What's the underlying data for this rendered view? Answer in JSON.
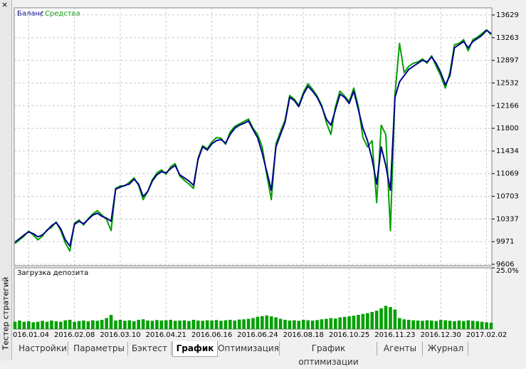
{
  "window": {
    "close": "×",
    "side_title": "Тестер стратегий"
  },
  "tabs": [
    {
      "label": "Настройки"
    },
    {
      "label": "Параметры"
    },
    {
      "label": "Бэктест"
    },
    {
      "label": "График",
      "active": true
    },
    {
      "label": "Оптимизация"
    },
    {
      "label": "График оптимизации"
    },
    {
      "label": "Агенты"
    },
    {
      "label": "Журнал"
    }
  ],
  "chart_data": [
    {
      "type": "line",
      "grid": true,
      "categories": [
        null,
        null,
        null,
        "2016.01.04",
        null,
        null,
        null,
        null,
        null,
        null,
        null,
        null,
        null,
        "2016.02.08",
        null,
        null,
        null,
        null,
        null,
        null,
        null,
        null,
        null,
        "2016.03.10",
        null,
        null,
        null,
        null,
        null,
        null,
        null,
        null,
        null,
        "2016.04.21",
        null,
        null,
        null,
        null,
        null,
        null,
        null,
        null,
        null,
        "2016.06.16",
        null,
        null,
        null,
        null,
        null,
        null,
        null,
        null,
        null,
        "2016.06.24",
        null,
        null,
        null,
        null,
        null,
        null,
        null,
        null,
        null,
        "2016.08.18",
        null,
        null,
        null,
        null,
        null,
        null,
        null,
        null,
        null,
        "2016.10.25",
        null,
        null,
        null,
        null,
        null,
        null,
        null,
        null,
        null,
        "2016.11.23",
        null,
        null,
        null,
        null,
        null,
        null,
        null,
        null,
        null,
        "2016.12.30",
        null,
        null,
        null,
        null,
        null,
        null,
        null,
        null,
        null,
        "2017.02.02",
        null
      ],
      "ylim": [
        9583,
        13744
      ],
      "yticks": [
        9606,
        9971,
        10337,
        10703,
        11069,
        11434,
        11800,
        12166,
        12532,
        12897,
        13263,
        13629
      ],
      "series": [
        {
          "name": "Средства",
          "color": "#00a000",
          "values": [
            9940,
            10000,
            10060,
            10140,
            10080,
            10000,
            10060,
            10160,
            10200,
            10290,
            10150,
            9950,
            9820,
            10270,
            10320,
            10240,
            10340,
            10420,
            10470,
            10400,
            10330,
            10150,
            10830,
            10870,
            10870,
            10930,
            11000,
            10880,
            10650,
            10780,
            10970,
            11080,
            11130,
            11060,
            11180,
            11230,
            11030,
            10960,
            10900,
            10830,
            11320,
            11520,
            11470,
            11580,
            11650,
            11640,
            11540,
            11740,
            11830,
            11870,
            11910,
            11950,
            11800,
            11700,
            11500,
            11050,
            10650,
            11550,
            11750,
            11930,
            12330,
            12270,
            12170,
            12380,
            12520,
            12430,
            12320,
            12170,
            11900,
            11700,
            12150,
            12400,
            12320,
            12230,
            12450,
            12150,
            11650,
            11500,
            11600,
            10600,
            11850,
            11700,
            10150,
            12350,
            13170,
            12700,
            12800,
            12850,
            12870,
            12920,
            12850,
            12970,
            12800,
            12650,
            12450,
            12700,
            13150,
            13170,
            13230,
            13050,
            13230,
            13270,
            13330,
            13390,
            13310
          ]
        },
        {
          "name": "Баланс",
          "color": "#00008b",
          "values": [
            9962,
            10020,
            10080,
            10130,
            10100,
            10050,
            10080,
            10150,
            10230,
            10280,
            10180,
            10000,
            9900,
            10250,
            10300,
            10260,
            10330,
            10400,
            10430,
            10380,
            10350,
            10300,
            10820,
            10850,
            10880,
            10900,
            10980,
            10900,
            10700,
            10780,
            10950,
            11050,
            11100,
            11080,
            11150,
            11200,
            11050,
            11000,
            10950,
            10880,
            11300,
            11500,
            11450,
            11550,
            11600,
            11620,
            11560,
            11700,
            11800,
            11850,
            11880,
            11920,
            11780,
            11650,
            11400,
            11100,
            10800,
            11500,
            11700,
            11900,
            12300,
            12250,
            12150,
            12350,
            12480,
            12400,
            12300,
            12150,
            11950,
            11850,
            12100,
            12350,
            12300,
            12200,
            12400,
            12100,
            11800,
            11600,
            11300,
            10900,
            11500,
            11200,
            10800,
            12300,
            12550,
            12650,
            12750,
            12800,
            12850,
            12900,
            12870,
            12950,
            12850,
            12700,
            12500,
            12650,
            13100,
            13150,
            13200,
            13100,
            13200,
            13250,
            13300,
            13380,
            13330
          ]
        }
      ]
    },
    {
      "type": "bar",
      "title": "Загрузка депозита",
      "color": "#00a000",
      "grid": true,
      "ylim": [
        0,
        25
      ],
      "yticks": [
        {
          "value": 25,
          "label": "25.0%"
        }
      ],
      "values": [
        3,
        3.5,
        3,
        3.2,
        2.8,
        3,
        3.4,
        3,
        3.5,
        3.2,
        3,
        3.6,
        3.8,
        3,
        3.3,
        3.5,
        3.2,
        3.6,
        3.4,
        3.8,
        4.5,
        5.8,
        3.5,
        3.8,
        3.4,
        3.6,
        3.2,
        3.8,
        4,
        3.5,
        3.4,
        3.7,
        3.5,
        3.6,
        3.8,
        3.4,
        3.5,
        3.6,
        3.3,
        3.8,
        3.5,
        3.4,
        3.6,
        3.5,
        3.7,
        3.4,
        3.6,
        3.8,
        3.5,
        3.9,
        4,
        4.2,
        4.5,
        5,
        5.3,
        5.6,
        5.2,
        4.8,
        4.2,
        3.8,
        3.5,
        3.6,
        3.4,
        3.8,
        3.6,
        3.5,
        3.7,
        4,
        4.2,
        4.5,
        4.3,
        4.8,
        5,
        5.2,
        5.5,
        5.8,
        6.2,
        6.5,
        7,
        7.5,
        8.5,
        9.5,
        9,
        8,
        4.5,
        4,
        3.8,
        3.6,
        3.5,
        3.4,
        3.6,
        3.5,
        3.3,
        3.8,
        3.6,
        3.4,
        3.2,
        3.5,
        3.3,
        3.6,
        3.4,
        3.2,
        3,
        2.8,
        2.6
      ]
    }
  ]
}
